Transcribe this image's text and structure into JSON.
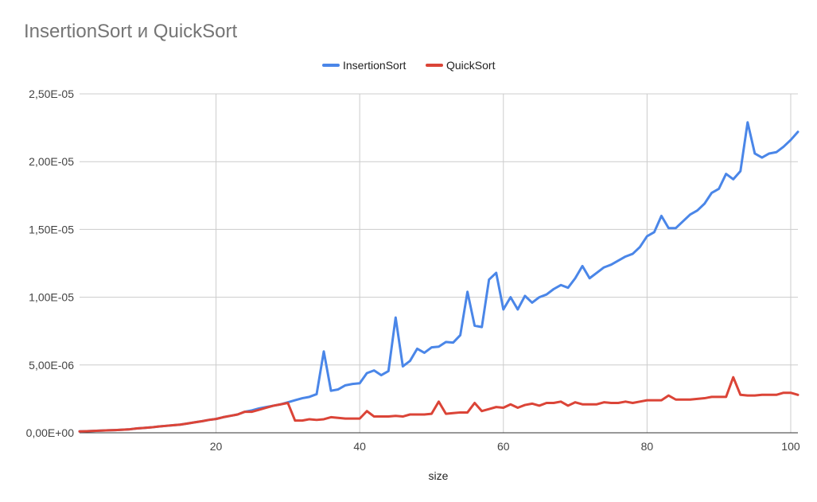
{
  "chart_data": {
    "type": "line",
    "title": "InsertionSort и QuickSort",
    "xlabel": "size",
    "ylabel": "",
    "xlim": [
      1,
      101
    ],
    "ylim": [
      0,
      2.5e-05
    ],
    "x_ticks": [
      20,
      40,
      60,
      80,
      100
    ],
    "y_ticks": [
      0,
      5e-06,
      1e-05,
      1.5e-05,
      2e-05,
      2.5e-05
    ],
    "y_tick_labels": [
      "0,00E+00",
      "5,00E-06",
      "1,00E-05",
      "1,50E-05",
      "2,00E-05",
      "2,50E-05"
    ],
    "grid": true,
    "legend_position": "top-center",
    "x": [
      1,
      2,
      3,
      4,
      5,
      6,
      7,
      8,
      9,
      10,
      11,
      12,
      13,
      14,
      15,
      16,
      17,
      18,
      19,
      20,
      21,
      22,
      23,
      24,
      25,
      26,
      27,
      28,
      29,
      30,
      31,
      32,
      33,
      34,
      35,
      36,
      37,
      38,
      39,
      40,
      41,
      42,
      43,
      44,
      45,
      46,
      47,
      48,
      49,
      50,
      51,
      52,
      53,
      54,
      55,
      56,
      57,
      58,
      59,
      60,
      61,
      62,
      63,
      64,
      65,
      66,
      67,
      68,
      69,
      70,
      71,
      72,
      73,
      74,
      75,
      76,
      77,
      78,
      79,
      80,
      81,
      82,
      83,
      84,
      85,
      86,
      87,
      88,
      89,
      90,
      91,
      92,
      93,
      94,
      95,
      96,
      97,
      98,
      99,
      100,
      101
    ],
    "series": [
      {
        "name": "InsertionSort",
        "color": "#4a86e8",
        "values": [
          1e-07,
          1.2e-07,
          1.4e-07,
          1.6e-07,
          1.8e-07,
          2e-07,
          2.3e-07,
          2.6e-07,
          3.2e-07,
          3.6e-07,
          4e-07,
          4.6e-07,
          5.1e-07,
          5.6e-07,
          6e-07,
          6.8e-07,
          7.7e-07,
          8.5e-07,
          9.5e-07,
          1.02e-06,
          1.15e-06,
          1.25e-06,
          1.35e-06,
          1.55e-06,
          1.65e-06,
          1.8e-06,
          1.9e-06,
          2e-06,
          2.1e-06,
          2.25e-06,
          2.4e-06,
          2.55e-06,
          2.65e-06,
          2.85e-06,
          6e-06,
          3.1e-06,
          3.2e-06,
          3.5e-06,
          3.6e-06,
          3.65e-06,
          4.4e-06,
          4.6e-06,
          4.25e-06,
          4.55e-06,
          8.5e-06,
          4.9e-06,
          5.3e-06,
          6.2e-06,
          5.9e-06,
          6.3e-06,
          6.35e-06,
          6.7e-06,
          6.65e-06,
          7.2e-06,
          1.04e-05,
          7.9e-06,
          7.8e-06,
          1.13e-05,
          1.18e-05,
          9.1e-06,
          1e-05,
          9.1e-06,
          1.01e-05,
          9.6e-06,
          1e-05,
          1.02e-05,
          1.06e-05,
          1.09e-05,
          1.07e-05,
          1.14e-05,
          1.23e-05,
          1.14e-05,
          1.18e-05,
          1.22e-05,
          1.24e-05,
          1.27e-05,
          1.3e-05,
          1.32e-05,
          1.37e-05,
          1.45e-05,
          1.48e-05,
          1.6e-05,
          1.51e-05,
          1.51e-05,
          1.56e-05,
          1.61e-05,
          1.64e-05,
          1.69e-05,
          1.77e-05,
          1.8e-05,
          1.91e-05,
          1.87e-05,
          1.93e-05,
          2.29e-05,
          2.06e-05,
          2.03e-05,
          2.06e-05,
          2.07e-05,
          2.11e-05,
          2.16e-05,
          2.22e-05
        ]
      },
      {
        "name": "QuickSort",
        "color": "#db4437",
        "values": [
          1e-07,
          1.2e-07,
          1.4e-07,
          1.6e-07,
          1.8e-07,
          2e-07,
          2.3e-07,
          2.6e-07,
          3.2e-07,
          3.6e-07,
          4e-07,
          4.6e-07,
          5.1e-07,
          5.6e-07,
          6e-07,
          6.8e-07,
          7.7e-07,
          8.5e-07,
          9.5e-07,
          1.02e-06,
          1.15e-06,
          1.25e-06,
          1.35e-06,
          1.55e-06,
          1.55e-06,
          1.7e-06,
          1.85e-06,
          2e-06,
          2.1e-06,
          2.2e-06,
          9e-07,
          9e-07,
          1e-06,
          9.5e-07,
          1e-06,
          1.15e-06,
          1.1e-06,
          1.05e-06,
          1.05e-06,
          1.05e-06,
          1.6e-06,
          1.2e-06,
          1.2e-06,
          1.2e-06,
          1.25e-06,
          1.2e-06,
          1.35e-06,
          1.35e-06,
          1.35e-06,
          1.4e-06,
          2.3e-06,
          1.4e-06,
          1.45e-06,
          1.5e-06,
          1.5e-06,
          2.2e-06,
          1.6e-06,
          1.75e-06,
          1.9e-06,
          1.85e-06,
          2.1e-06,
          1.85e-06,
          2.05e-06,
          2.15e-06,
          2e-06,
          2.2e-06,
          2.2e-06,
          2.3e-06,
          2e-06,
          2.25e-06,
          2.1e-06,
          2.1e-06,
          2.1e-06,
          2.25e-06,
          2.2e-06,
          2.2e-06,
          2.3e-06,
          2.2e-06,
          2.3e-06,
          2.4e-06,
          2.4e-06,
          2.4e-06,
          2.75e-06,
          2.45e-06,
          2.45e-06,
          2.45e-06,
          2.5e-06,
          2.55e-06,
          2.65e-06,
          2.65e-06,
          2.65e-06,
          4.1e-06,
          2.8e-06,
          2.75e-06,
          2.75e-06,
          2.8e-06,
          2.8e-06,
          2.8e-06,
          2.95e-06,
          2.95e-06,
          2.8e-06
        ]
      }
    ]
  }
}
